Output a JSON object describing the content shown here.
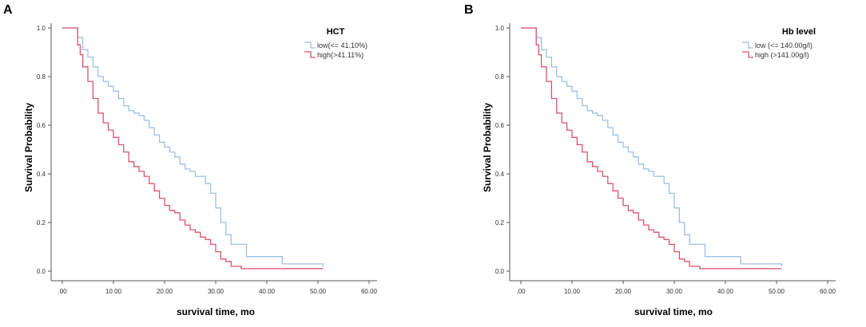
{
  "colors": {
    "low": "#9ebfe6",
    "high": "#d9536d",
    "axis": "#555555"
  },
  "chart_data": [
    {
      "type": "line",
      "panel": "A",
      "title": "",
      "xlabel": "survival time, mo",
      "ylabel": "Survival Probability",
      "xlim": [
        0,
        60
      ],
      "ylim": [
        0,
        1
      ],
      "xticks": [
        ".00",
        "10.00",
        "20.00",
        "30.00",
        "40.00",
        "50.00",
        "60.00"
      ],
      "yticks": [
        "0.0",
        "0.2",
        "0.4",
        "0.6",
        "0.8",
        "1.0"
      ],
      "legend_title": "HCT",
      "legend_position": "top-right",
      "grid": false,
      "series": [
        {
          "name": "low(<= 41.10%)",
          "color": "low",
          "points": [
            [
              0,
              1.0
            ],
            [
              2,
              1.0
            ],
            [
              3,
              0.96
            ],
            [
              4,
              0.91
            ],
            [
              5,
              0.88
            ],
            [
              6,
              0.84
            ],
            [
              7,
              0.8
            ],
            [
              8,
              0.78
            ],
            [
              9,
              0.76
            ],
            [
              10,
              0.74
            ],
            [
              11,
              0.71
            ],
            [
              12,
              0.68
            ],
            [
              13,
              0.66
            ],
            [
              14,
              0.65
            ],
            [
              15,
              0.64
            ],
            [
              16,
              0.62
            ],
            [
              17,
              0.59
            ],
            [
              18,
              0.56
            ],
            [
              19,
              0.53
            ],
            [
              20,
              0.51
            ],
            [
              21,
              0.49
            ],
            [
              22,
              0.47
            ],
            [
              23,
              0.44
            ],
            [
              24,
              0.42
            ],
            [
              25,
              0.41
            ],
            [
              26,
              0.39
            ],
            [
              28,
              0.36
            ],
            [
              29,
              0.32
            ],
            [
              30,
              0.26
            ],
            [
              31,
              0.2
            ],
            [
              32,
              0.15
            ],
            [
              33,
              0.11
            ],
            [
              36,
              0.06
            ],
            [
              43,
              0.03
            ],
            [
              51,
              0.02
            ]
          ]
        },
        {
          "name": "high(>41.11%)",
          "color": "high",
          "points": [
            [
              0,
              1.0
            ],
            [
              2,
              1.0
            ],
            [
              3,
              0.93
            ],
            [
              3.5,
              0.89
            ],
            [
              4,
              0.84
            ],
            [
              5,
              0.78
            ],
            [
              6,
              0.71
            ],
            [
              7,
              0.65
            ],
            [
              8,
              0.61
            ],
            [
              9,
              0.58
            ],
            [
              10,
              0.55
            ],
            [
              11,
              0.52
            ],
            [
              12,
              0.49
            ],
            [
              13,
              0.45
            ],
            [
              14,
              0.43
            ],
            [
              15,
              0.41
            ],
            [
              16,
              0.39
            ],
            [
              17,
              0.36
            ],
            [
              18,
              0.33
            ],
            [
              19,
              0.3
            ],
            [
              20,
              0.27
            ],
            [
              21,
              0.25
            ],
            [
              22,
              0.24
            ],
            [
              23,
              0.21
            ],
            [
              24,
              0.19
            ],
            [
              25,
              0.17
            ],
            [
              26,
              0.16
            ],
            [
              27,
              0.14
            ],
            [
              28,
              0.13
            ],
            [
              29,
              0.11
            ],
            [
              30,
              0.08
            ],
            [
              31,
              0.05
            ],
            [
              32,
              0.04
            ],
            [
              33,
              0.02
            ],
            [
              35,
              0.01
            ],
            [
              51,
              0.01
            ]
          ]
        }
      ]
    },
    {
      "type": "line",
      "panel": "B",
      "title": "",
      "xlabel": "survival time,  mo",
      "ylabel": "Survival Probability",
      "xlim": [
        0,
        60
      ],
      "ylim": [
        0,
        1
      ],
      "xticks": [
        ".00",
        "10.00",
        "20.00",
        "30.00",
        "40.00",
        "50.00",
        "60.00"
      ],
      "yticks": [
        "0.0",
        "0.2",
        "0.4",
        "0.6",
        "0.8",
        "1.0"
      ],
      "legend_title": "Hb level",
      "legend_position": "top-right",
      "grid": false,
      "series": [
        {
          "name": "low  (<= 140.00g/l)",
          "color": "low",
          "points": [
            [
              0,
              1.0
            ],
            [
              2,
              1.0
            ],
            [
              3,
              0.96
            ],
            [
              4,
              0.91
            ],
            [
              5,
              0.88
            ],
            [
              6,
              0.84
            ],
            [
              7,
              0.8
            ],
            [
              8,
              0.78
            ],
            [
              9,
              0.76
            ],
            [
              10,
              0.74
            ],
            [
              11,
              0.71
            ],
            [
              12,
              0.68
            ],
            [
              13,
              0.66
            ],
            [
              14,
              0.65
            ],
            [
              15,
              0.64
            ],
            [
              16,
              0.62
            ],
            [
              17,
              0.59
            ],
            [
              18,
              0.56
            ],
            [
              19,
              0.53
            ],
            [
              20,
              0.51
            ],
            [
              21,
              0.49
            ],
            [
              22,
              0.47
            ],
            [
              23,
              0.44
            ],
            [
              24,
              0.42
            ],
            [
              25,
              0.41
            ],
            [
              26,
              0.39
            ],
            [
              28,
              0.36
            ],
            [
              29,
              0.32
            ],
            [
              30,
              0.26
            ],
            [
              31,
              0.2
            ],
            [
              32,
              0.15
            ],
            [
              33,
              0.11
            ],
            [
              36,
              0.06
            ],
            [
              43,
              0.03
            ],
            [
              51,
              0.02
            ]
          ]
        },
        {
          "name": "high  (>141.00g/l)",
          "color": "high",
          "points": [
            [
              0,
              1.0
            ],
            [
              2,
              1.0
            ],
            [
              3,
              0.93
            ],
            [
              3.5,
              0.89
            ],
            [
              4,
              0.84
            ],
            [
              5,
              0.78
            ],
            [
              6,
              0.71
            ],
            [
              7,
              0.65
            ],
            [
              8,
              0.61
            ],
            [
              9,
              0.58
            ],
            [
              10,
              0.55
            ],
            [
              11,
              0.52
            ],
            [
              12,
              0.49
            ],
            [
              13,
              0.45
            ],
            [
              14,
              0.43
            ],
            [
              15,
              0.41
            ],
            [
              16,
              0.39
            ],
            [
              17,
              0.36
            ],
            [
              18,
              0.33
            ],
            [
              19,
              0.3
            ],
            [
              20,
              0.27
            ],
            [
              21,
              0.25
            ],
            [
              22,
              0.24
            ],
            [
              23,
              0.21
            ],
            [
              24,
              0.19
            ],
            [
              25,
              0.17
            ],
            [
              26,
              0.16
            ],
            [
              27,
              0.14
            ],
            [
              28,
              0.13
            ],
            [
              29,
              0.11
            ],
            [
              30,
              0.08
            ],
            [
              31,
              0.05
            ],
            [
              32,
              0.04
            ],
            [
              33,
              0.02
            ],
            [
              35,
              0.01
            ],
            [
              51,
              0.01
            ]
          ]
        }
      ]
    }
  ]
}
